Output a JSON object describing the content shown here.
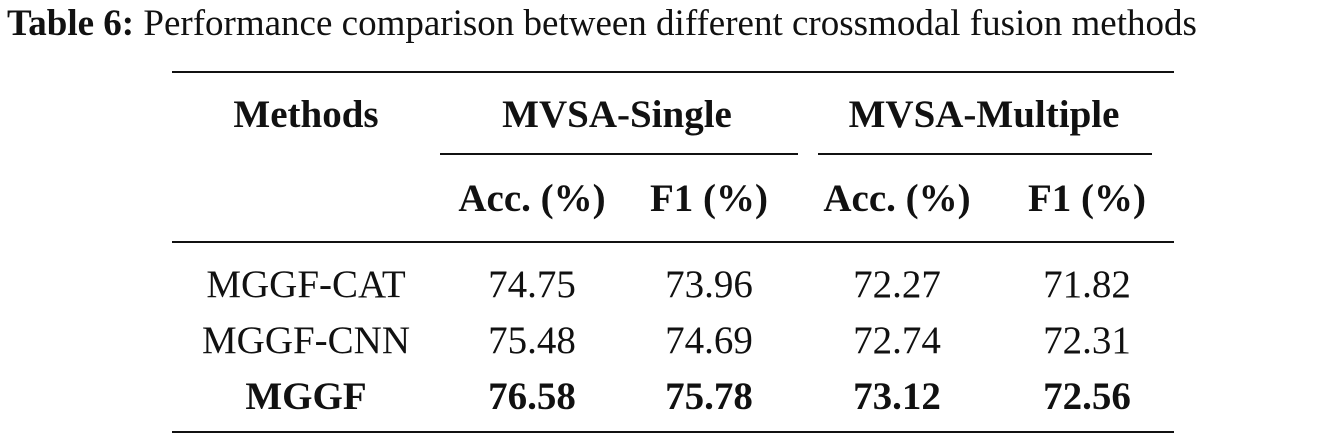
{
  "caption": {
    "label": "Table 6:",
    "text": "Performance comparison between different crossmodal fusion methods"
  },
  "table": {
    "methods_header": "Methods",
    "groups": [
      {
        "label": "MVSA-Single"
      },
      {
        "label": "MVSA-Multiple"
      }
    ],
    "subheaders": [
      "Acc. (%)",
      "F1 (%)",
      "Acc. (%)",
      "F1 (%)"
    ],
    "rows": [
      {
        "method": "MGGF-CAT",
        "values": [
          "74.75",
          "73.96",
          "72.27",
          "71.82"
        ],
        "bold": false
      },
      {
        "method": "MGGF-CNN",
        "values": [
          "75.48",
          "74.69",
          "72.74",
          "72.31"
        ],
        "bold": false
      },
      {
        "method": "MGGF",
        "values": [
          "76.58",
          "75.78",
          "73.12",
          "72.56"
        ],
        "bold": true
      }
    ]
  }
}
